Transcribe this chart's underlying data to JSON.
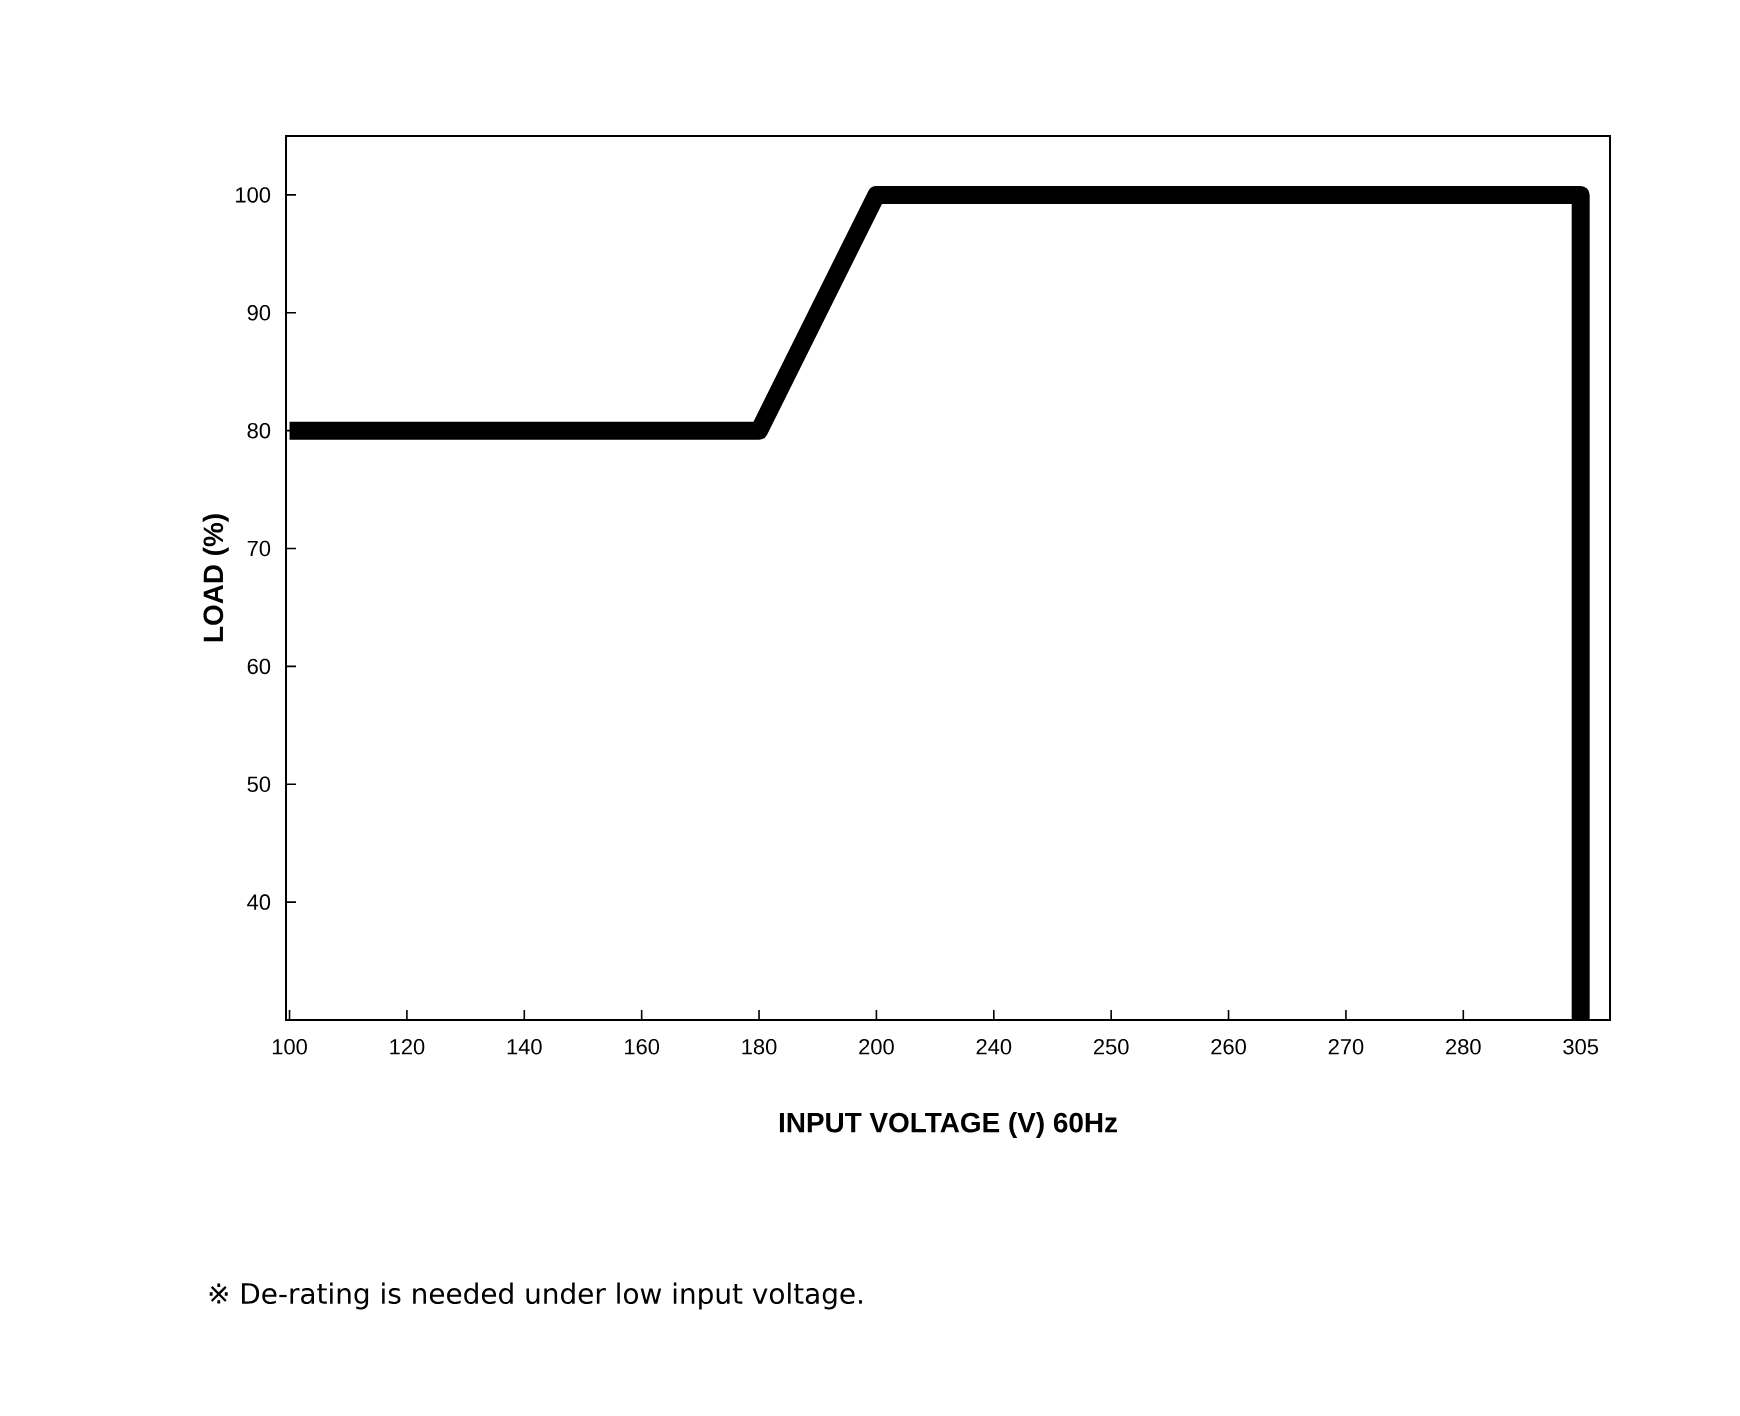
{
  "chart_data": {
    "type": "line",
    "xlabel": "INPUT VOLTAGE (V) 60Hz",
    "ylabel": "LOAD (%)",
    "categories": [
      "100",
      "120",
      "140",
      "160",
      "180",
      "200",
      "240",
      "250",
      "260",
      "270",
      "280",
      "305"
    ],
    "series": [
      {
        "color": "#000000",
        "x": [
          "100",
          "120",
          "140",
          "160",
          "180",
          "200",
          "240",
          "250",
          "260",
          "270",
          "280",
          "305",
          "305"
        ],
        "values": [
          80,
          80,
          80,
          80,
          80,
          100,
          100,
          100,
          100,
          100,
          100,
          100,
          30
        ]
      }
    ],
    "ylim": [
      30,
      105
    ],
    "yticks": [
      40,
      50,
      60,
      70,
      80,
      90,
      100
    ],
    "grid": false,
    "marker": "none",
    "line_style": "solid",
    "annotations": [
      "※ De-rating is needed under low input voltage."
    ]
  }
}
